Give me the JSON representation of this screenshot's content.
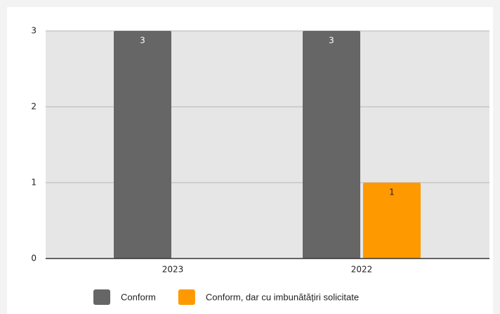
{
  "chart_data": {
    "type": "bar",
    "categories": [
      "2023",
      "2022"
    ],
    "series": [
      {
        "name": "Conform",
        "color": "#666666",
        "values": [
          3,
          3
        ]
      },
      {
        "name": "Conform, dar cu imbunătățiri solicitate",
        "color": "#ff9900",
        "values": [
          null,
          1
        ]
      }
    ],
    "ylim": [
      0,
      3
    ],
    "yticks": [
      0,
      1,
      2,
      3
    ],
    "grid": true,
    "legend": "bottom"
  }
}
